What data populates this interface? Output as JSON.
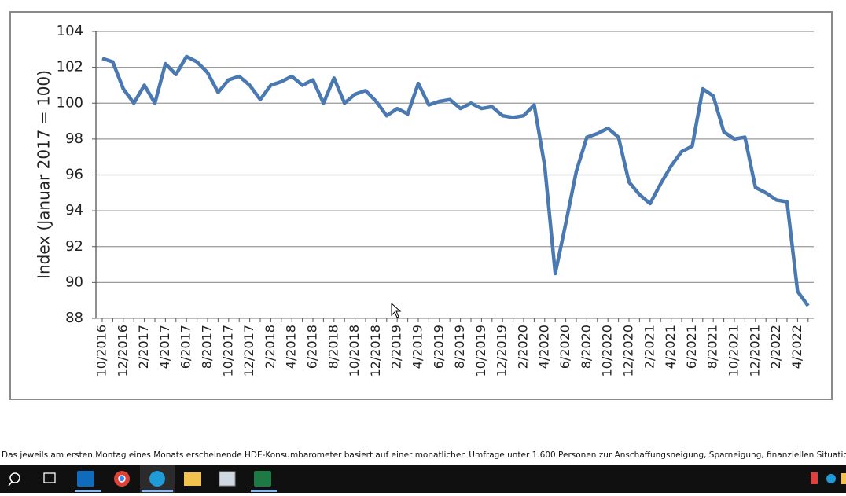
{
  "chart_data": {
    "type": "line",
    "ylabel": "Index (Januar 2017 = 100)",
    "categories": [
      "10/2016",
      null,
      "12/2016",
      null,
      "2/2017",
      null,
      "4/2017",
      null,
      "6/2017",
      null,
      "8/2017",
      null,
      "10/2017",
      null,
      "12/2017",
      null,
      "2/2018",
      null,
      "4/2018",
      null,
      "6/2018",
      null,
      "8/2018",
      null,
      "10/2018",
      null,
      "12/2018",
      null,
      "2/2019",
      null,
      "4/2019",
      null,
      "6/2019",
      null,
      "8/2019",
      null,
      "10/2019",
      null,
      "12/2019",
      null,
      "2/2020",
      null,
      "4/2020",
      null,
      "6/2020",
      null,
      "8/2020",
      null,
      "10/2020",
      null,
      "12/2020",
      null,
      "2/2021",
      null,
      "4/2021",
      null,
      "6/2021",
      null,
      "8/2021",
      null,
      "10/2021",
      null,
      "12/2021",
      null,
      "2/2022",
      null,
      "4/2022",
      null
    ],
    "values": [
      102.5,
      102.3,
      100.8,
      100.0,
      101.0,
      100.0,
      102.2,
      101.6,
      102.6,
      102.3,
      101.7,
      100.6,
      101.3,
      101.5,
      101.0,
      100.2,
      101.0,
      101.2,
      101.5,
      101.0,
      101.3,
      100.0,
      101.4,
      100.0,
      100.5,
      100.7,
      100.1,
      99.3,
      99.7,
      99.4,
      101.1,
      99.9,
      100.1,
      100.2,
      99.7,
      100.0,
      99.7,
      99.8,
      99.3,
      99.2,
      99.3,
      99.9,
      96.5,
      90.5,
      93.3,
      96.2,
      98.1,
      98.3,
      98.6,
      98.1,
      95.6,
      94.9,
      94.4,
      95.5,
      96.5,
      97.3,
      97.6,
      100.8,
      100.4,
      98.4,
      98.0,
      98.1,
      95.3,
      95.0,
      94.6,
      94.5,
      89.5,
      88.7
    ],
    "color": "#4a78b0",
    "ylim": [
      88,
      104
    ],
    "yticks": [
      88,
      90,
      92,
      94,
      96,
      98,
      100,
      102,
      104
    ],
    "grid": true
  },
  "caption": "Das jeweils am ersten Montag eines Monats erscheinende HDE-Konsumbarometer basiert auf einer monatlichen Umfrage unter 1.600 Personen zur Anschaffungsneigung, Sparneigung, finanziellen Situation und zu"
}
